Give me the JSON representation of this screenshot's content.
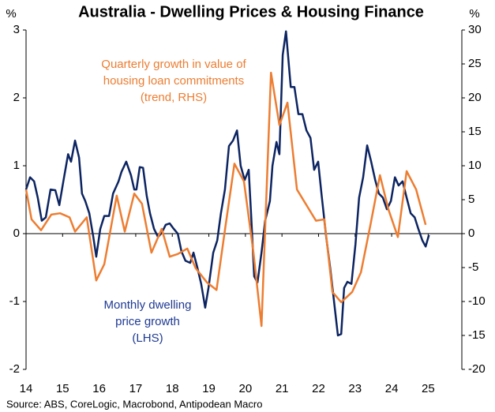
{
  "chart_data": {
    "type": "line",
    "title": "Australia - Dwelling Prices & Housing Finance",
    "y_unit": "%",
    "y2_unit": "%",
    "source": "Source: ABS, CoreLogic, Macrobond, Antipodean Macro",
    "annotations": [
      {
        "lines": [
          "Quarterly growth in value of",
          "housing loan commitments",
          "(trend, RHS)"
        ],
        "color": "#ed7d31"
      },
      {
        "lines": [
          "Monthly dwelling",
          "price growth",
          "(LHS)"
        ],
        "color": "#1f3a93"
      }
    ],
    "xlim": [
      2014,
      2025.92
    ],
    "xticks": [
      {
        "value": 2014,
        "label": "14"
      },
      {
        "value": 2015,
        "label": "15"
      },
      {
        "value": 2016,
        "label": "16"
      },
      {
        "value": 2017,
        "label": "17"
      },
      {
        "value": 2018,
        "label": "18"
      },
      {
        "value": 2019,
        "label": "19"
      },
      {
        "value": 2020,
        "label": "20"
      },
      {
        "value": 2021,
        "label": "21"
      },
      {
        "value": 2022,
        "label": "22"
      },
      {
        "value": 2023,
        "label": "23"
      },
      {
        "value": 2024,
        "label": "24"
      },
      {
        "value": 2025,
        "label": "25"
      }
    ],
    "ylim": [
      -2,
      3
    ],
    "yticks": [
      -2,
      -1,
      0,
      1,
      2,
      3
    ],
    "y2lim": [
      -20,
      30
    ],
    "y2ticks": [
      -20,
      -15,
      -10,
      -5,
      0,
      5,
      10,
      15,
      20,
      25,
      30
    ],
    "grid": false,
    "series": [
      {
        "color": "#0c2461",
        "axis": "y",
        "x": [
          2014,
          2014.11,
          2014.22,
          2014.32,
          2014.43,
          2014.54,
          2014.67,
          2014.8,
          2014.91,
          2015.02,
          2015.15,
          2015.23,
          2015.34,
          2015.45,
          2015.53,
          2015.62,
          2015.73,
          2015.84,
          2015.92,
          2016.03,
          2016.14,
          2016.27,
          2016.38,
          2016.53,
          2016.61,
          2016.74,
          2016.87,
          2016.96,
          2017.02,
          2017.11,
          2017.2,
          2017.3,
          2017.39,
          2017.5,
          2017.61,
          2017.71,
          2017.82,
          2017.93,
          2018.04,
          2018.15,
          2018.25,
          2018.36,
          2018.49,
          2018.58,
          2018.69,
          2018.79,
          2018.9,
          2018.99,
          2019.12,
          2019.23,
          2019.33,
          2019.44,
          2019.55,
          2019.66,
          2019.77,
          2019.87,
          2019.98,
          2020.09,
          2020.16,
          2020.24,
          2020.33,
          2020.44,
          2020.54,
          2020.67,
          2020.74,
          2020.85,
          2020.93,
          2021.02,
          2021.11,
          2021.24,
          2021.34,
          2021.45,
          2021.56,
          2021.67,
          2021.78,
          2021.88,
          2021.99,
          2022.08,
          2022.21,
          2022.32,
          2022.42,
          2022.53,
          2022.62,
          2022.7,
          2022.79,
          2022.9,
          2023.01,
          2023.11,
          2023.22,
          2023.33,
          2023.44,
          2023.55,
          2023.65,
          2023.76,
          2023.87,
          2023.98,
          2024.09,
          2024.19,
          2024.3,
          2024.41,
          2024.52,
          2024.63,
          2024.73,
          2024.84,
          2024.93,
          2025.02
        ],
        "values": [
          0.65,
          0.83,
          0.77,
          0.53,
          0.19,
          0.24,
          0.65,
          0.64,
          0.42,
          0.77,
          1.17,
          1.06,
          1.37,
          1.12,
          0.59,
          0.48,
          0.3,
          -0.05,
          -0.34,
          0.07,
          0.26,
          0.26,
          0.59,
          0.77,
          0.91,
          1.06,
          0.86,
          0.65,
          0.65,
          0.98,
          0.97,
          0.56,
          0.3,
          0.07,
          -0.05,
          0.01,
          0.13,
          0.15,
          0.07,
          0,
          -0.26,
          -0.4,
          -0.43,
          -0.28,
          -0.51,
          -0.74,
          -1.09,
          -0.8,
          -0.28,
          -0.1,
          0.3,
          0.65,
          1.29,
          1.37,
          1.52,
          1.0,
          0.79,
          0.94,
          0.24,
          -0.63,
          -0.72,
          -0.28,
          0.19,
          0.48,
          1.0,
          1.35,
          1.17,
          2.63,
          2.98,
          2.16,
          2.16,
          1.76,
          1.76,
          1.52,
          1.41,
          0.94,
          1.06,
          0.59,
          -0.05,
          -0.51,
          -0.98,
          -1.5,
          -1.48,
          -0.8,
          -0.71,
          -0.74,
          -0.16,
          0.53,
          0.83,
          1.3,
          1.06,
          0.79,
          0.59,
          0.53,
          0.36,
          0.48,
          0.83,
          0.71,
          0.77,
          0.53,
          0.3,
          0.24,
          0.07,
          -0.1,
          -0.19,
          -0.02
        ]
      },
      {
        "color": "#ed7d31",
        "axis": "y2",
        "x": [
          2014,
          2014.15,
          2014.41,
          2014.69,
          2014.93,
          2015.19,
          2015.34,
          2015.66,
          2015.92,
          2016.14,
          2016.48,
          2016.7,
          2016.96,
          2017.17,
          2017.43,
          2017.71,
          2017.93,
          2018.15,
          2018.41,
          2018.64,
          2018.95,
          2019.21,
          2019.46,
          2019.7,
          2019.96,
          2020.22,
          2020.44,
          2020.7,
          2020.93,
          2021.15,
          2021.41,
          2021.67,
          2021.93,
          2022.16,
          2022.38,
          2022.62,
          2022.92,
          2023.16,
          2023.42,
          2023.68,
          2023.91,
          2024.17,
          2024.41,
          2024.67,
          2024.93
        ],
        "values": [
          6.5,
          2.1,
          0.5,
          2.8,
          3.0,
          2.4,
          0.3,
          2.4,
          -6.9,
          -4.5,
          5.6,
          0.3,
          5.9,
          4.4,
          -2.8,
          0.7,
          -3.4,
          -3.0,
          -2.2,
          -5.1,
          -7.2,
          -8.3,
          1.3,
          10.3,
          7.7,
          -2.8,
          -13.6,
          23.7,
          16.0,
          19.3,
          6.5,
          4.2,
          1.9,
          2.1,
          -8.6,
          -10.1,
          -8.6,
          -5.7,
          1.3,
          8.6,
          3.6,
          -0.5,
          9.2,
          6.5,
          1.3
        ]
      }
    ]
  }
}
